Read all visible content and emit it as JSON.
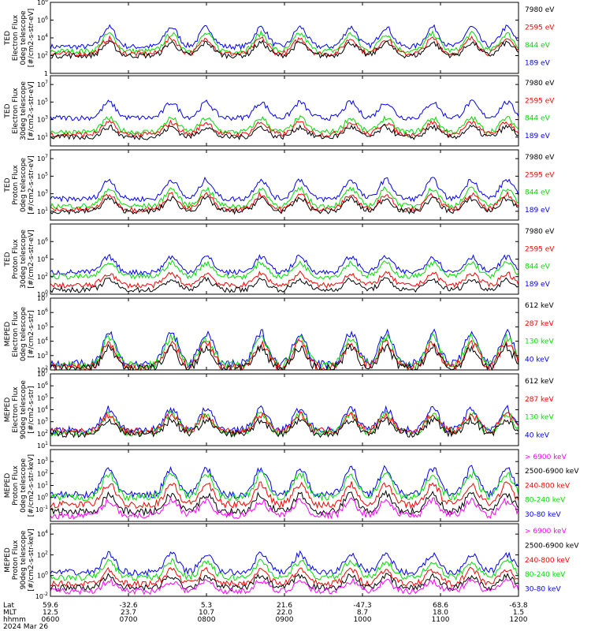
{
  "chart_data": [
    {
      "type": "line",
      "ylabel": [
        "TED",
        "Electron Flux",
        "0deg telescope",
        "[#/cm2-s-str-eV]"
      ],
      "yscale": "log",
      "ylim": [
        1,
        100000000.0
      ],
      "ticks": [
        {
          "b": 0,
          "e": 0
        },
        {
          "b": 10,
          "e": 2
        },
        {
          "b": 10,
          "e": 4
        },
        {
          "b": 10,
          "e": 6
        },
        {
          "b": 10,
          "e": 8
        }
      ],
      "series": [
        {
          "name": "7980 eV",
          "color": "#000000",
          "level": 2
        },
        {
          "name": "2595 eV",
          "color": "#ff0000",
          "level": 2.2
        },
        {
          "name": "844 eV",
          "color": "#00dd00",
          "level": 2.5
        },
        {
          "name": "189 eV",
          "color": "#0000ff",
          "level": 3.0
        }
      ]
    },
    {
      "type": "line",
      "ylabel": [
        "TED",
        "Electron Flux",
        "30deg telescope",
        "[#/cm2-s-str-eV]"
      ],
      "yscale": "log",
      "ylim": [
        1,
        100000000.0
      ],
      "ticks": [
        {
          "b": 10,
          "e": 1
        },
        {
          "b": 10,
          "e": 3
        },
        {
          "b": 10,
          "e": 5
        },
        {
          "b": 10,
          "e": 7
        }
      ],
      "series": [
        {
          "name": "7980 eV",
          "color": "#000000",
          "level": 1
        },
        {
          "name": "2595 eV",
          "color": "#ff0000",
          "level": 1.3
        },
        {
          "name": "844 eV",
          "color": "#00dd00",
          "level": 1.6
        },
        {
          "name": "189 eV",
          "color": "#0000ff",
          "level": 3.2
        }
      ]
    },
    {
      "type": "line",
      "ylabel": [
        "TED",
        "Proton Flux",
        "0deg telescope",
        "[#/cm2-s-str-eV]"
      ],
      "yscale": "log",
      "ylim": [
        1,
        100000000.0
      ],
      "ticks": [
        {
          "b": 10,
          "e": 1
        },
        {
          "b": 10,
          "e": 3
        },
        {
          "b": 10,
          "e": 5
        },
        {
          "b": 10,
          "e": 7
        }
      ],
      "series": [
        {
          "name": "7980 eV",
          "color": "#000000",
          "level": 1
        },
        {
          "name": "2595 eV",
          "color": "#ff0000",
          "level": 1.2
        },
        {
          "name": "844 eV",
          "color": "#00dd00",
          "level": 1.6
        },
        {
          "name": "189 eV",
          "color": "#0000ff",
          "level": 2.4
        }
      ]
    },
    {
      "type": "line",
      "ylabel": [
        "TED",
        "Proton Flux",
        "30deg telescope",
        "[#/cm2-s-str-eV]"
      ],
      "yscale": "log",
      "ylim": [
        1,
        100000000.0
      ],
      "ticks": [
        {
          "b": 10,
          "e": 0
        },
        {
          "b": 10,
          "e": 2
        },
        {
          "b": 10,
          "e": 4
        },
        {
          "b": 10,
          "e": 6
        }
      ],
      "series": [
        {
          "name": "7980 eV",
          "color": "#000000",
          "level": 0.5
        },
        {
          "name": "2595 eV",
          "color": "#ff0000",
          "level": 1.0
        },
        {
          "name": "844 eV",
          "color": "#00dd00",
          "level": 2.0
        },
        {
          "name": "189 eV",
          "color": "#0000ff",
          "level": 2.5
        }
      ]
    },
    {
      "type": "line",
      "ylabel": [
        "MEPED",
        "Electron Flux",
        "0deg telescope",
        "[#/cm2-s-str]"
      ],
      "yscale": "log",
      "ylim": [
        100,
        10000000.0
      ],
      "ticks": [
        {
          "b": 10,
          "e": 2
        },
        {
          "b": 10,
          "e": 3
        },
        {
          "b": 10,
          "e": 4
        },
        {
          "b": 10,
          "e": 5
        },
        {
          "b": 10,
          "e": 6
        },
        {
          "b": 10,
          "e": 7
        }
      ],
      "series": [
        {
          "name": "612 keV",
          "color": "#000000",
          "level": 2.1
        },
        {
          "name": "287 keV",
          "color": "#ff0000",
          "level": 2.2
        },
        {
          "name": "130 keV",
          "color": "#00dd00",
          "level": 2.3
        },
        {
          "name": "40 keV",
          "color": "#0000ff",
          "level": 2.4
        }
      ]
    },
    {
      "type": "line",
      "ylabel": [
        "MEPED",
        "Electron Flux",
        "90deg telescope",
        "[#/cm2-s-str]"
      ],
      "yscale": "log",
      "ylim": [
        10,
        10000000.0
      ],
      "ticks": [
        {
          "b": 10,
          "e": 1
        },
        {
          "b": 10,
          "e": 2
        },
        {
          "b": 10,
          "e": 3
        },
        {
          "b": 10,
          "e": 4
        },
        {
          "b": 10,
          "e": 5
        },
        {
          "b": 10,
          "e": 6
        },
        {
          "b": 10,
          "e": 7
        }
      ],
      "series": [
        {
          "name": "612 keV",
          "color": "#000000",
          "level": 2.0
        },
        {
          "name": "287 keV",
          "color": "#ff0000",
          "level": 2.2
        },
        {
          "name": "130 keV",
          "color": "#00dd00",
          "level": 2.1
        },
        {
          "name": "40 keV",
          "color": "#0000ff",
          "level": 2.3
        }
      ]
    },
    {
      "type": "line",
      "ylabel": [
        "MEPED",
        "Proton Flux",
        "0deg telescope",
        "[#/cm2-s-str-keV]"
      ],
      "yscale": "log",
      "ylim": [
        0.01,
        10000.0
      ],
      "ticks": [
        {
          "b": 10,
          "e": -1
        },
        {
          "b": 10,
          "e": 0
        },
        {
          "b": 10,
          "e": 1
        },
        {
          "b": 10,
          "e": 2
        },
        {
          "b": 10,
          "e": 3
        }
      ],
      "series": [
        {
          "name": "> 6900 keV",
          "color": "#ff00ff",
          "level": -1.5
        },
        {
          "name": "2500-6900 keV",
          "color": "#000000",
          "level": -1.2
        },
        {
          "name": "240-800 keV",
          "color": "#ff0000",
          "level": -0.6
        },
        {
          "name": "80-240 keV",
          "color": "#00dd00",
          "level": 0
        },
        {
          "name": "30-80 keV",
          "color": "#0000ff",
          "level": 0.2
        }
      ]
    },
    {
      "type": "line",
      "ylabel": [
        "MEPED",
        "Proton Flux",
        "90deg telescope",
        "[#/cm2-s-str-keV]"
      ],
      "yscale": "log",
      "ylim": [
        0.01,
        100000.0
      ],
      "ticks": [
        {
          "b": 10,
          "e": -2
        },
        {
          "b": 10,
          "e": 0
        },
        {
          "b": 10,
          "e": 2
        },
        {
          "b": 10,
          "e": 4
        }
      ],
      "series": [
        {
          "name": "> 6900 keV",
          "color": "#ff00ff",
          "level": -1.5
        },
        {
          "name": "2500-6900 keV",
          "color": "#000000",
          "level": -1.2
        },
        {
          "name": "240-800 keV",
          "color": "#ff0000",
          "level": -0.8
        },
        {
          "name": "80-240 keV",
          "color": "#00dd00",
          "level": -0.2
        },
        {
          "name": "30-80 keV",
          "color": "#0000ff",
          "level": 0.3
        }
      ]
    }
  ],
  "x_axis": {
    "row_labels": [
      "Lat",
      "MLT",
      "hhmm",
      "2024 Mar 26"
    ],
    "columns": [
      {
        "lat": "59.6",
        "mlt": "12.5",
        "hhmm": "0600"
      },
      {
        "lat": "-32.6",
        "mlt": "23.7",
        "hhmm": "0700"
      },
      {
        "lat": "5.3",
        "mlt": "10.7",
        "hhmm": "0800"
      },
      {
        "lat": "21.6",
        "mlt": "22.0",
        "hhmm": "0900"
      },
      {
        "lat": "-47.3",
        "mlt": "8.7",
        "hhmm": "1000"
      },
      {
        "lat": "68.6",
        "mlt": "18.0",
        "hhmm": "1100"
      },
      {
        "lat": "-63.8",
        "mlt": "1.5",
        "hhmm": "1200"
      }
    ],
    "hour_range": [
      6,
      12
    ]
  }
}
